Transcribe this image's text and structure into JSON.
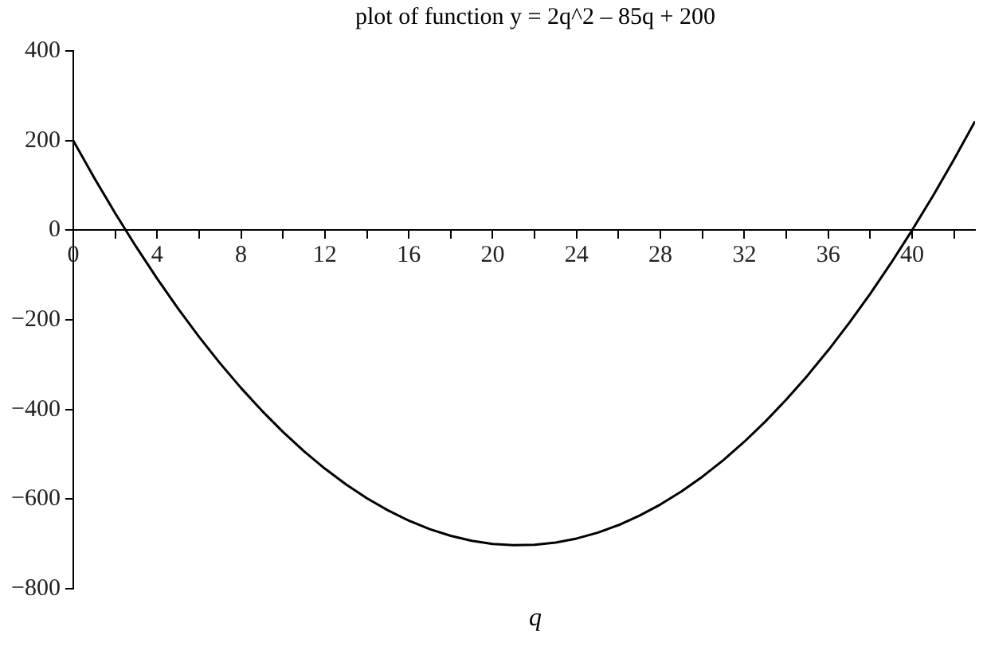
{
  "chart_data": {
    "type": "line",
    "title": "plot of function y = 2q^2 – 85q + 200",
    "xlabel": "q",
    "x": [
      0,
      1,
      2,
      3,
      4,
      5,
      6,
      7,
      8,
      9,
      10,
      11,
      12,
      13,
      14,
      15,
      16,
      17,
      18,
      19,
      20,
      21,
      22,
      23,
      24,
      25,
      26,
      27,
      28,
      29,
      30,
      31,
      32,
      33,
      34,
      35,
      36,
      37,
      38,
      39,
      40,
      41,
      42,
      43
    ],
    "series": [
      {
        "color": "#000000",
        "values": [
          200,
          117,
          38,
          -37,
          -108,
          -175,
          -238,
          -297,
          -352,
          -403,
          -450,
          -493,
          -532,
          -567,
          -598,
          -625,
          -648,
          -667,
          -682,
          -693,
          -700,
          -703,
          -702,
          -697,
          -688,
          -675,
          -658,
          -637,
          -612,
          -583,
          -550,
          -513,
          -472,
          -427,
          -378,
          -325,
          -268,
          -207,
          -142,
          -73,
          0,
          77,
          158,
          243
        ]
      }
    ],
    "xlim": [
      0,
      43
    ],
    "xticks": [
      0,
      {
        "value": 2,
        "label": null
      },
      4,
      {
        "value": 6,
        "label": null
      },
      8,
      {
        "value": 10,
        "label": null
      },
      12,
      {
        "value": 14,
        "label": null
      },
      16,
      {
        "value": 18,
        "label": null
      },
      20,
      {
        "value": 22,
        "label": null
      },
      24,
      {
        "value": 26,
        "label": null
      },
      28,
      {
        "value": 30,
        "label": null
      },
      32,
      {
        "value": 34,
        "label": null
      },
      36,
      {
        "value": 38,
        "label": null
      },
      40,
      {
        "value": 42,
        "label": null
      }
    ],
    "ylim": [
      -800,
      400
    ],
    "yticks": [
      {
        "value": -800,
        "label": "−800"
      },
      {
        "value": -600,
        "label": "−600"
      },
      {
        "value": -400,
        "label": "−400"
      },
      {
        "value": -200,
        "label": "−200"
      },
      0,
      200,
      400
    ],
    "grid": false,
    "legend": false,
    "marker": "none",
    "line_style": "solid"
  }
}
